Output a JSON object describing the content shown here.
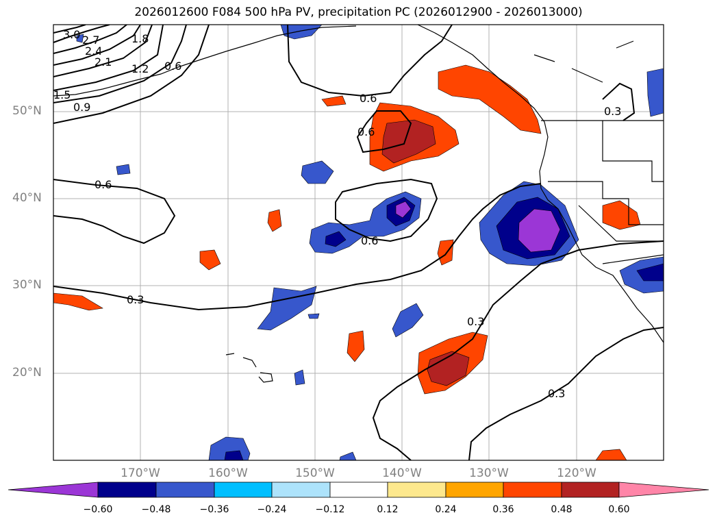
{
  "title": "2026012600 F084 500 hPa PV, precipitation PC (2026012900 - 2026013000)",
  "map": {
    "region": "northeast-pacific-western-north-america",
    "lat_range": [
      10,
      60
    ],
    "lon_range": [
      -180,
      -110
    ],
    "lat_labels": [
      "50°N",
      "40°N",
      "30°N",
      "20°N"
    ],
    "lon_labels": [
      "170°W",
      "160°W",
      "150°W",
      "140°W",
      "130°W",
      "120°W"
    ],
    "contour_labels": [
      "3.0",
      "2.7",
      "2.4",
      "2.1",
      "1.8",
      "1.5",
      "1.2",
      "0.9",
      "0.6",
      "0.6",
      "0.6",
      "0.6",
      "0.6",
      "0.3",
      "0.3",
      "0.3",
      "0.3"
    ]
  },
  "colorbar": {
    "colors": [
      "#9b36d6",
      "#00008b",
      "#3757cc",
      "#00bfff",
      "#ade3fb",
      "#ffffff",
      "#fde88d",
      "#ffa500",
      "#ff4500",
      "#b22222",
      "#ff85a8"
    ],
    "ticks": [
      "−0.60",
      "−0.48",
      "−0.36",
      "−0.24",
      "−0.12",
      "0.12",
      "0.24",
      "0.36",
      "0.48",
      "0.60"
    ]
  }
}
